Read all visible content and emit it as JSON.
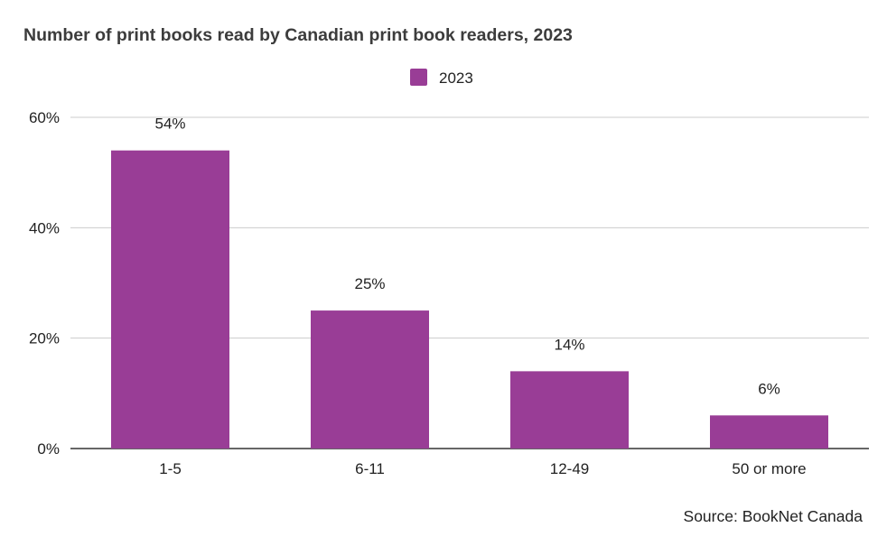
{
  "chart_data": {
    "type": "bar",
    "title": "Number of print books read by Canadian print book readers, 2023",
    "categories": [
      "1-5",
      "6-11",
      "12-49",
      "50 or more"
    ],
    "series": [
      {
        "name": "2023",
        "values": [
          54,
          25,
          14,
          6
        ],
        "data_labels": [
          "54%",
          "25%",
          "14%",
          "6%"
        ],
        "color": "#993d96"
      }
    ],
    "xlabel": "",
    "ylabel": "",
    "ylim": [
      0,
      60
    ],
    "yticks": [
      0,
      20,
      40,
      60
    ],
    "ytick_labels": [
      "0%",
      "20%",
      "40%",
      "60%"
    ],
    "grid": true,
    "legend_position": "top-center"
  },
  "source": "Source: BookNet Canada",
  "colors": {
    "bar": "#993d96",
    "grid": "#cccccc",
    "axis": "#333333",
    "text": "#222222",
    "title": "#3c3c3c"
  }
}
